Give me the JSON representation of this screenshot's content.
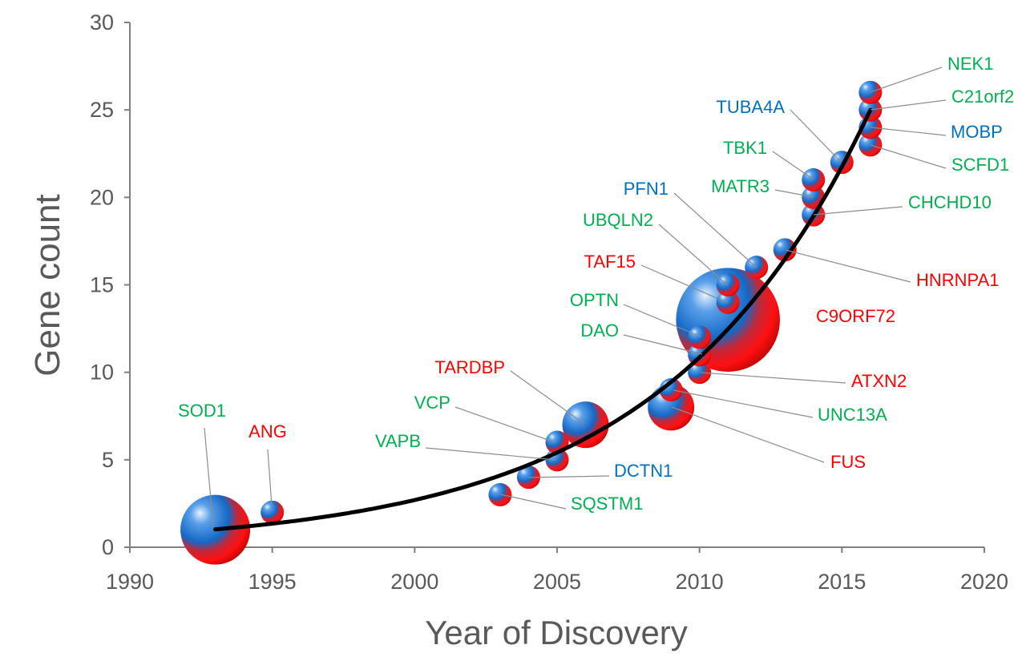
{
  "chart_data": {
    "type": "scatter",
    "title": "",
    "xlabel": "Year of Discovery",
    "ylabel": "Gene count",
    "xlim": [
      1990,
      2020
    ],
    "ylim": [
      0,
      30
    ],
    "x_ticks": [
      1990,
      1995,
      2000,
      2005,
      2010,
      2015,
      2020
    ],
    "y_ticks": [
      0,
      5,
      10,
      15,
      20,
      25,
      30
    ],
    "trend_line": {
      "type": "exponential",
      "x_start": 1993,
      "x_end": 2016,
      "color": "#000000"
    },
    "category_colors": {
      "red": "#ff0000",
      "blue": "#0070c0",
      "green": "#00b050"
    },
    "points": [
      {
        "gene": "SOD1",
        "year": 1993,
        "count": 1,
        "bubble_size": 9,
        "label_color": "green"
      },
      {
        "gene": "ANG",
        "year": 1995,
        "count": 2,
        "bubble_size": 1,
        "label_color": "red"
      },
      {
        "gene": "SQSTM1",
        "year": 2003,
        "count": 3,
        "bubble_size": 1,
        "label_color": "green"
      },
      {
        "gene": "DCTN1",
        "year": 2004,
        "count": 4,
        "bubble_size": 1,
        "label_color": "blue"
      },
      {
        "gene": "VAPB",
        "year": 2005,
        "count": 5,
        "bubble_size": 1,
        "label_color": "green"
      },
      {
        "gene": "VCP",
        "year": 2005,
        "count": 6,
        "bubble_size": 1,
        "label_color": "green"
      },
      {
        "gene": "TARDBP",
        "year": 2006,
        "count": 7,
        "bubble_size": 4,
        "label_color": "red"
      },
      {
        "gene": "FUS",
        "year": 2009,
        "count": 8,
        "bubble_size": 4,
        "label_color": "red"
      },
      {
        "gene": "UNC13A",
        "year": 2009,
        "count": 9,
        "bubble_size": 1,
        "label_color": "green"
      },
      {
        "gene": "ATXN2",
        "year": 2010,
        "count": 10,
        "bubble_size": 1,
        "label_color": "red"
      },
      {
        "gene": "DAO",
        "year": 2010,
        "count": 11,
        "bubble_size": 1,
        "label_color": "green"
      },
      {
        "gene": "OPTN",
        "year": 2010,
        "count": 12,
        "bubble_size": 1,
        "label_color": "green"
      },
      {
        "gene": "C9ORF72",
        "year": 2011,
        "count": 13,
        "bubble_size": 20,
        "label_color": "red"
      },
      {
        "gene": "TAF15",
        "year": 2011,
        "count": 14,
        "bubble_size": 1,
        "label_color": "red"
      },
      {
        "gene": "UBQLN2",
        "year": 2011,
        "count": 15,
        "bubble_size": 1,
        "label_color": "green"
      },
      {
        "gene": "PFN1",
        "year": 2012,
        "count": 16,
        "bubble_size": 1,
        "label_color": "blue"
      },
      {
        "gene": "HNRNPA1",
        "year": 2013,
        "count": 17,
        "bubble_size": 1,
        "label_color": "red"
      },
      {
        "gene": "CHCHD10",
        "year": 2014,
        "count": 19,
        "bubble_size": 1,
        "label_color": "green"
      },
      {
        "gene": "MATR3",
        "year": 2014,
        "count": 20,
        "bubble_size": 1,
        "label_color": "green"
      },
      {
        "gene": "TBK1",
        "year": 2014,
        "count": 21,
        "bubble_size": 1,
        "label_color": "green"
      },
      {
        "gene": "TUBA4A",
        "year": 2015,
        "count": 22,
        "bubble_size": 1,
        "label_color": "blue"
      },
      {
        "gene": "SCFD1",
        "year": 2016,
        "count": 23,
        "bubble_size": 1,
        "label_color": "green"
      },
      {
        "gene": "MOBP",
        "year": 2016,
        "count": 24,
        "bubble_size": 1,
        "label_color": "blue"
      },
      {
        "gene": "C21orf2",
        "year": 2016,
        "count": 25,
        "bubble_size": 1,
        "label_color": "green"
      },
      {
        "gene": "NEK1",
        "year": 2016,
        "count": 26,
        "bubble_size": 1,
        "label_color": "green"
      }
    ]
  }
}
